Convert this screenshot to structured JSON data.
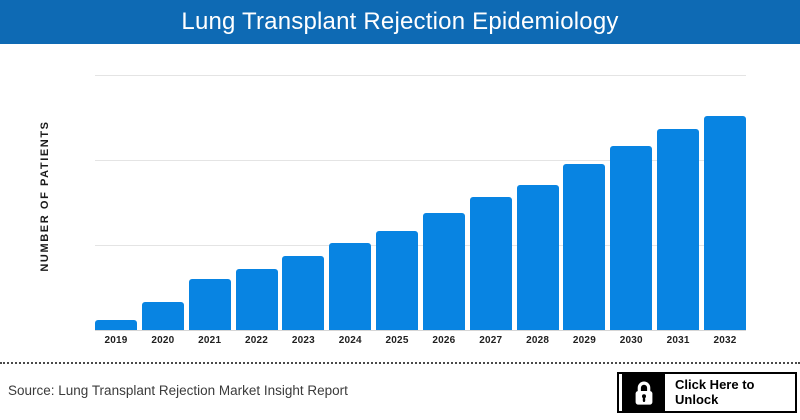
{
  "header": {
    "title": "Lung Transplant Rejection Epidemiology",
    "bg_color": "#0e6ab4",
    "text_color": "#ffffff"
  },
  "chart_data": {
    "type": "bar",
    "title": "Lung Transplant Rejection Epidemiology",
    "categories": [
      "2019",
      "2020",
      "2021",
      "2022",
      "2023",
      "2024",
      "2025",
      "2026",
      "2027",
      "2028",
      "2029",
      "2030",
      "2031",
      "2032"
    ],
    "values": [
      4,
      11,
      20,
      24,
      29,
      34,
      39,
      46,
      52,
      57,
      65,
      72,
      79,
      84
    ],
    "values_note": "y-axis has no numeric tick labels; values are estimated as percent of axis maximum",
    "xlabel": "",
    "ylabel": "NUMBER OF PATIENTS",
    "ylim": [
      0,
      100
    ],
    "gridlines": "horizontal, at 0/33/67/100 percent of axis",
    "legend_position": "none",
    "bar_color": "#0884e2",
    "grid_color": "#e4e4e4"
  },
  "footer": {
    "source_text": "Source: Lung Transplant Rejection Market Insight Report",
    "unlock_button": {
      "line1": "Click Here to",
      "line2": "Unlock",
      "icon": "lock-icon"
    }
  }
}
